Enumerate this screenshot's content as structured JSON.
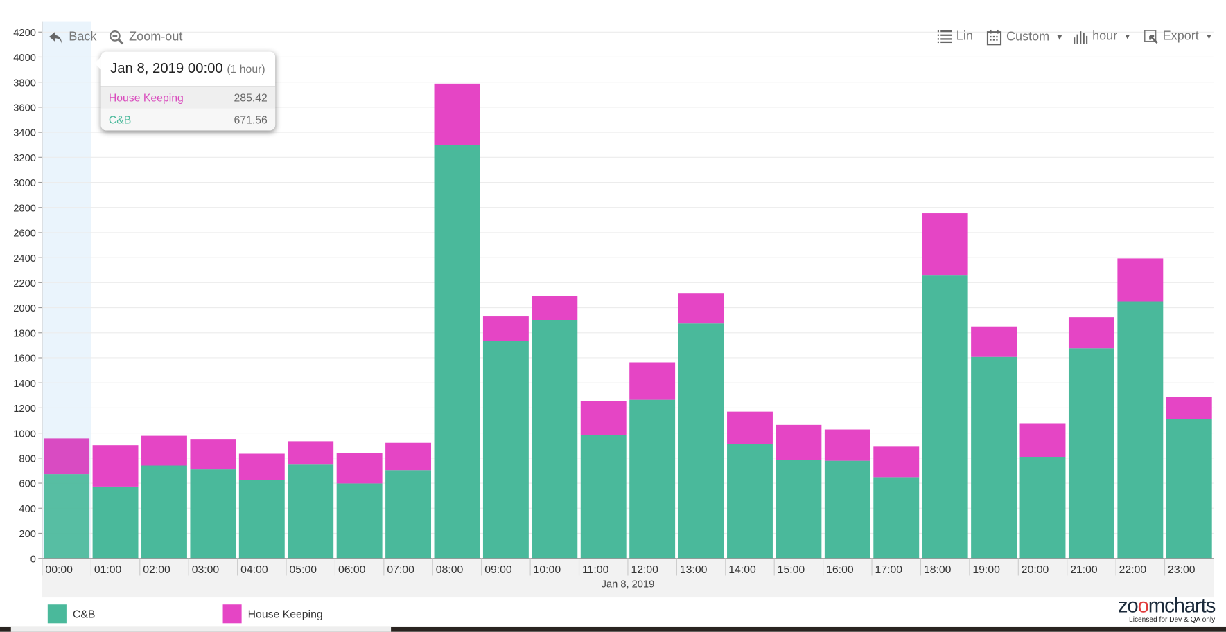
{
  "toolbar": {
    "back_label": "Back",
    "zoomout_label": "Zoom-out",
    "scale_label": "Lin",
    "period_label": "Custom",
    "unit_label": "hour",
    "export_label": "Export"
  },
  "tooltip": {
    "title": "Jan 8, 2019 00:00",
    "duration": "(1 hour)",
    "rows": [
      {
        "name": "House Keeping",
        "value": "285.42"
      },
      {
        "name": "C&B",
        "value": "671.56"
      }
    ]
  },
  "legend": [
    {
      "name": "C&B"
    },
    {
      "name": "House Keeping"
    }
  ],
  "logo": {
    "brand": "zoomcharts",
    "license": "Licensed for Dev & QA only"
  },
  "colors": {
    "cb": "#4ab99b",
    "hk": "#e545c5",
    "selection": "#eaf4fc",
    "axis_band": "#f2f2f2"
  },
  "chart_data": {
    "type": "bar",
    "stacked": true,
    "title": "",
    "xlabel": "Jan 8, 2019",
    "ylabel": "",
    "ylim": [
      0,
      4200
    ],
    "yticks": [
      0,
      200,
      400,
      600,
      800,
      1000,
      1200,
      1400,
      1600,
      1800,
      2000,
      2200,
      2400,
      2600,
      2800,
      3000,
      3200,
      3400,
      3600,
      3800,
      4000,
      4200
    ],
    "grid": true,
    "legend_position": "bottom-left",
    "categories": [
      "00:00",
      "01:00",
      "02:00",
      "03:00",
      "04:00",
      "05:00",
      "06:00",
      "07:00",
      "08:00",
      "09:00",
      "10:00",
      "11:00",
      "12:00",
      "13:00",
      "14:00",
      "15:00",
      "16:00",
      "17:00",
      "18:00",
      "19:00",
      "20:00",
      "21:00",
      "22:00",
      "23:00"
    ],
    "selected_index": 0,
    "series": [
      {
        "name": "C&B",
        "values": [
          671.56,
          573,
          741,
          710,
          623,
          748,
          598,
          704,
          3296,
          1738,
          1900,
          984,
          1265,
          1875,
          910,
          785,
          779,
          648,
          2262,
          1607,
          810,
          1676,
          2050,
          1109
        ]
      },
      {
        "name": "House Keeping",
        "values": [
          285.42,
          330,
          237,
          243,
          212,
          187,
          243,
          218,
          492,
          193,
          193,
          268,
          299,
          243,
          261,
          280,
          249,
          243,
          492,
          243,
          268,
          249,
          343,
          181
        ]
      }
    ]
  }
}
